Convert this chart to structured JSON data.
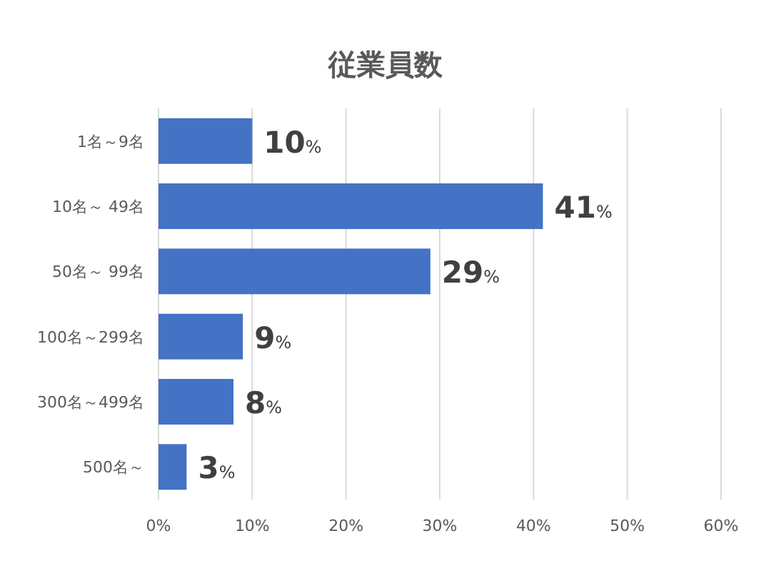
{
  "chart_data": {
    "type": "bar",
    "orientation": "horizontal",
    "title": "従業員数",
    "categories": [
      "1名～9名",
      "10名～ 49名",
      "50名～ 99名",
      "100名～299名",
      "300名～499名",
      "500名～"
    ],
    "values": [
      10,
      41,
      29,
      9,
      8,
      3
    ],
    "color": "#4472c4",
    "value_labels": [
      "10%",
      "41%",
      "29%",
      "9%",
      "8%",
      "3%"
    ],
    "xlim": [
      0,
      60
    ],
    "xticks": [
      {
        "value": 0,
        "label": "0%"
      },
      {
        "value": 10,
        "label": "10%"
      },
      {
        "value": 20,
        "label": "20%"
      },
      {
        "value": 30,
        "label": "30%"
      },
      {
        "value": 40,
        "label": "40%"
      },
      {
        "value": 50,
        "label": "50%"
      },
      {
        "value": 60,
        "label": "60%"
      }
    ],
    "grid": "x"
  }
}
